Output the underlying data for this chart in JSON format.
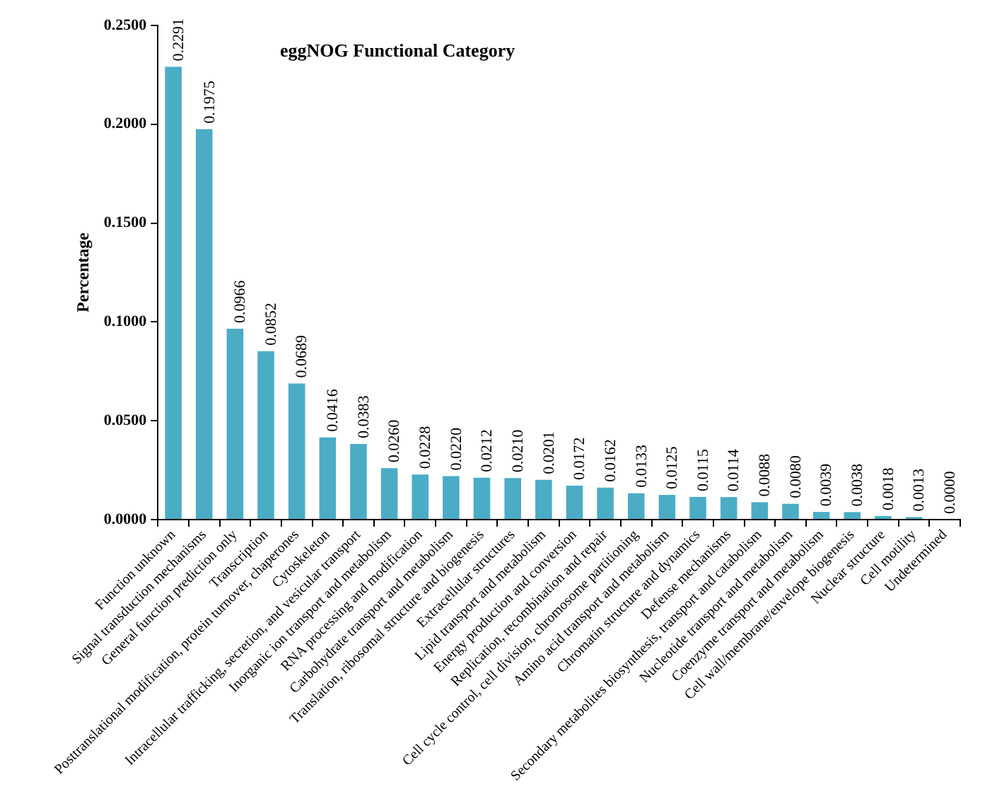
{
  "chart_data": {
    "type": "bar",
    "title": "eggNOG Functional Category",
    "ylabel": "Percentage",
    "categories": [
      "Function unknown",
      "Signal transduction mechanisms",
      "General function prediction only",
      "Transcription",
      "Posttranslational modification, protein turnover, chaperones",
      "Cytoskeleton",
      "Intracellular trafficking, secretion, and vesicular transport",
      "Inorganic ion transport and metabolism",
      "RNA processing and modification",
      "Carbohydrate transport and metabolism",
      "Translation, ribosomal structure and biogenesis",
      "Extracellular structures",
      "Lipid transport and metabolism",
      "Energy production and conversion",
      "Replication, recombination and repair",
      "Cell cycle control, cell division, chromosome partitioning",
      "Amino acid transport and metabolism",
      "Chromatin structure and dynamics",
      "Defense mechanisms",
      "Secondary metabolites biosynthesis, transport and catabolism",
      "Nucleotide transport and metabolism",
      "Coenzyme transport and metabolism",
      "Cell wall/membrane/envelope biogenesis",
      "Nuclear structure",
      "Cell motility",
      "Undetermined"
    ],
    "values": [
      0.2291,
      0.1975,
      0.0966,
      0.0852,
      0.0689,
      0.0416,
      0.0383,
      0.026,
      0.0228,
      0.022,
      0.0212,
      0.021,
      0.0201,
      0.0172,
      0.0162,
      0.0133,
      0.0125,
      0.0115,
      0.0114,
      0.0088,
      0.008,
      0.0039,
      0.0038,
      0.0018,
      0.0013,
      0.0
    ],
    "value_labels": [
      "0.2291",
      "0.1975",
      "0.0966",
      "0.0852",
      "0.0689",
      "0.0416",
      "0.0383",
      "0.0260",
      "0.0228",
      "0.0220",
      "0.0212",
      "0.0210",
      "0.0201",
      "0.0172",
      "0.0162",
      "0.0133",
      "0.0125",
      "0.0115",
      "0.0114",
      "0.0088",
      "0.0080",
      "0.0039",
      "0.0038",
      "0.0018",
      "0.0013",
      "0.0000"
    ],
    "color": "#4bacc6",
    "ylim": [
      0,
      0.25
    ],
    "yticks": [
      {
        "value": 0,
        "label": "0.0000"
      },
      {
        "value": 0.05,
        "label": "0.0500"
      },
      {
        "value": 0.1,
        "label": "0.1000"
      },
      {
        "value": 0.15,
        "label": "0.1500"
      },
      {
        "value": 0.2,
        "label": "0.2000"
      },
      {
        "value": 0.25,
        "label": "0.2500"
      }
    ],
    "grid": false,
    "legend": false
  }
}
